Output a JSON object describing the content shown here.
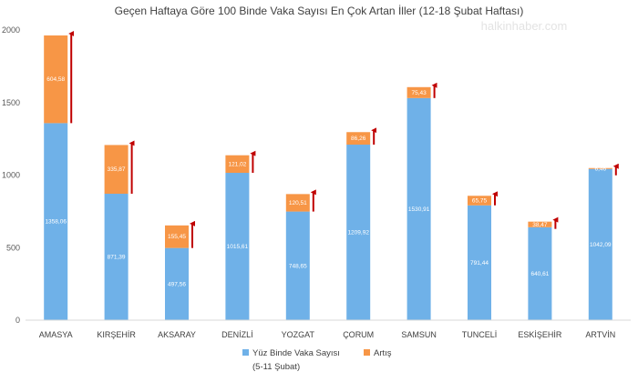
{
  "chart_data": {
    "type": "bar",
    "stacked": true,
    "title": "Geçen Haftaya Göre 100 Binde Vaka Sayısı En Çok Artan İller (12-18 Şubat Haftası)",
    "watermark": "halkinhaber.com",
    "categories": [
      "AMASYA",
      "KIRŞEHİR",
      "AKSARAY",
      "DENİZLİ",
      "YOZGAT",
      "ÇORUM",
      "SAMSUN",
      "TUNCELİ",
      "ESKİŞEHİR",
      "ARTVİN"
    ],
    "series": [
      {
        "name": "Yüz Binde Vaka Sayısı (5-11 Şubat)",
        "color": "#6fb1e8",
        "values": [
          1358.06,
          871.39,
          497.56,
          1015.61,
          748.65,
          1209.92,
          1530.91,
          791.44,
          640.61,
          1042.09
        ],
        "labels": [
          "1358,06",
          "871,39",
          "497,56",
          "1015,61",
          "748,65",
          "1209,92",
          "1530,91",
          "791,44",
          "640,61",
          "1042,09"
        ]
      },
      {
        "name": "Artış",
        "color": "#f79646",
        "values": [
          604.58,
          335.87,
          155.45,
          121.02,
          120.51,
          86.26,
          75.43,
          65.75,
          38.47,
          6.46
        ],
        "labels": [
          "604,58",
          "335,87",
          "155,45",
          "121,02",
          "120,51",
          "86,26",
          "75,43",
          "65,75",
          "38,47",
          "6,46"
        ]
      }
    ],
    "y_ticks": [
      0,
      500,
      1000,
      1500,
      2000
    ],
    "y_tick_labels": [
      "0",
      "500",
      "1000",
      "1500",
      "2000"
    ],
    "ylim": [
      0,
      2000
    ],
    "legend_position": "bottom",
    "arrow_color": "#c00000"
  }
}
